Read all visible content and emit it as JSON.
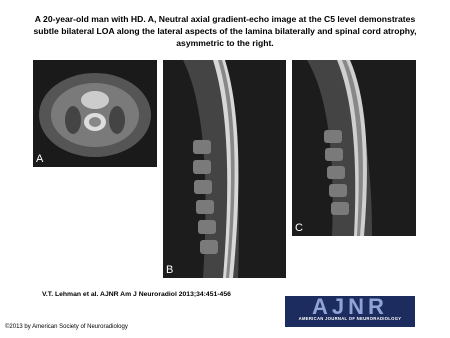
{
  "title_lines": [
    "A 20-year-old man with HD. A, Neutral axial gradient-echo image at the C5 level demonstrates",
    "subtle bilateral LOA along the lateral aspects of the lamina bilaterally and spinal cord atrophy,",
    "asymmetric to the right."
  ],
  "panels": [
    {
      "label": "A"
    },
    {
      "label": "B"
    },
    {
      "label": "C"
    }
  ],
  "citation": "V.T. Lehman et al. AJNR Am J Neuroradiol 2013;34:451-456",
  "logo": {
    "title": "AJNR",
    "subtitle": "AMERICAN JOURNAL OF NEURORADIOLOGY"
  },
  "copyright": "©2013 by American Society of Neuroradiology"
}
